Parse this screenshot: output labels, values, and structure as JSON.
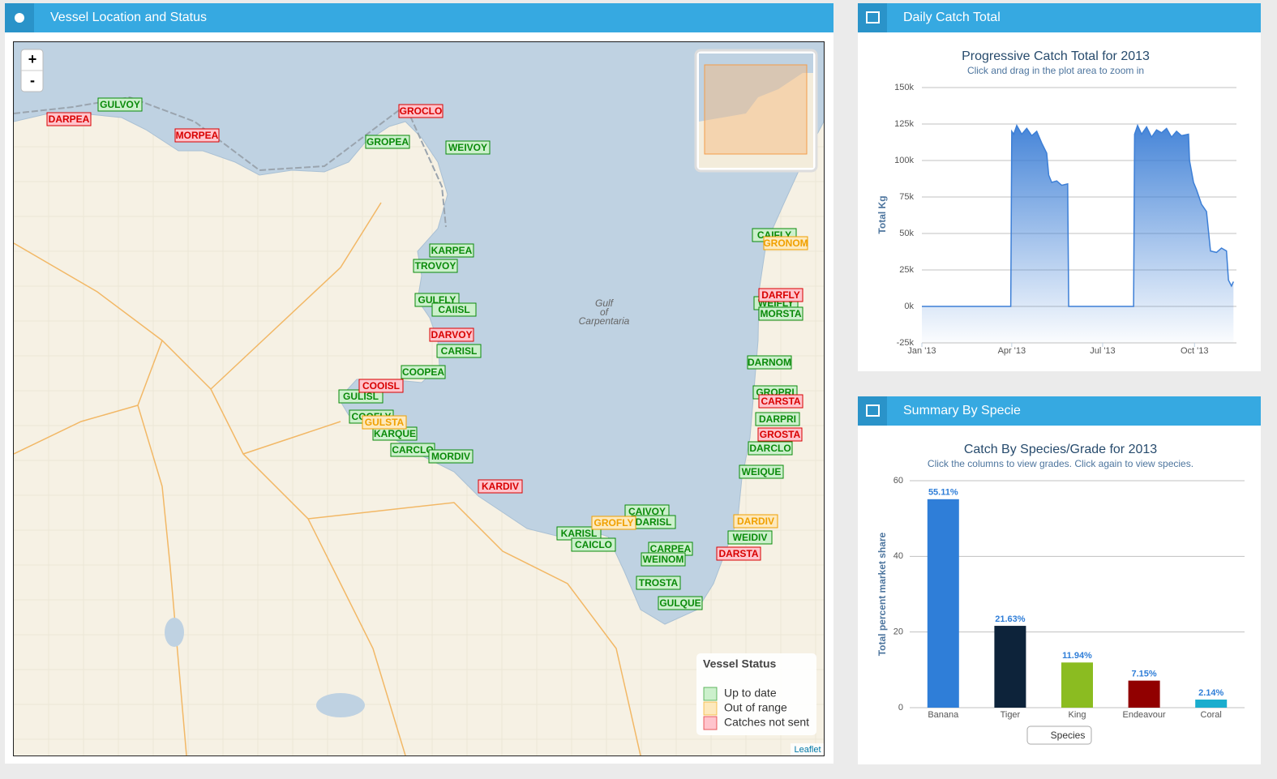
{
  "panels": {
    "map": {
      "title": "Vessel Location and Status",
      "zoom_in": "+",
      "zoom_out": "-",
      "place_label": [
        "Gulf",
        "of",
        "Carpentaria"
      ],
      "attribution": "Leaflet",
      "legend": {
        "title": "Vessel Status",
        "items": [
          {
            "label": "Up to date",
            "fill": "#ccf0cc",
            "color": "#0a8a0a",
            "vessels": [
              "GULVOY",
              "GROPEA",
              "WEIVOY",
              "CAIFLY",
              "KARPEA",
              "TROVOY",
              "GULFLY",
              "CAIISL",
              "WEIFLY",
              "MORSTA",
              "CARISL",
              "DARNOM",
              "COOPEA",
              "GROPRI",
              "GULISL",
              "COOFLY",
              "DARPRI",
              "KARQUE",
              "CARCLO",
              "DARCLO",
              "MORDIV",
              "WEIQUE",
              "CAIVOY",
              "DARISL",
              "KARISL",
              "WEIDIV",
              "CAICLO",
              "CARPEA",
              "WEINOM",
              "TROSTA",
              "GULQUE"
            ]
          },
          {
            "label": "Out of range",
            "fill": "#fde9bd",
            "color": "#f0a000",
            "vessels": [
              "GRONOM",
              "GULSTA",
              "GROFLY",
              "DARDIV"
            ]
          },
          {
            "label": "Catches not sent",
            "fill": "#ffc4cc",
            "color": "#d80000",
            "vessels": [
              "DARPEA",
              "MORPEA",
              "GROCLO",
              "DARFLY",
              "DARVOY",
              "COOISL",
              "CARSTA",
              "GROSTA",
              "KARDIV",
              "DARSTA"
            ]
          }
        ]
      }
    },
    "daily": {
      "title": "Daily Catch Total"
    },
    "summary": {
      "title": "Summary By Specie",
      "button": "Species"
    }
  },
  "chart_data": [
    {
      "type": "line",
      "title": "Progressive Catch Total for 2013",
      "subtitle": "Click and drag in the plot area to zoom in",
      "y_label": "Total Kg",
      "color": "#3d7fd6",
      "x": [
        0,
        89,
        90,
        92,
        95,
        100,
        105,
        110,
        115,
        120,
        125,
        127,
        130,
        135,
        140,
        146,
        147,
        212,
        213,
        216,
        220,
        225,
        230,
        235,
        240,
        245,
        250,
        255,
        260,
        267,
        268,
        272,
        275,
        280,
        285,
        289,
        295,
        300,
        305,
        307,
        310,
        312
      ],
      "series": [
        {
          "values": [
            0,
            0,
            120000,
            118000,
            124000,
            118000,
            122000,
            117000,
            120000,
            112000,
            105000,
            90000,
            85000,
            86000,
            83000,
            84000,
            0,
            0,
            118000,
            124000,
            118000,
            123000,
            116000,
            121000,
            119000,
            122000,
            116000,
            120000,
            117000,
            118000,
            100000,
            85000,
            80000,
            70000,
            65000,
            38000,
            37000,
            40000,
            38000,
            18000,
            14000,
            17000
          ]
        }
      ],
      "xlim": [
        0,
        315
      ],
      "xticks": [
        {
          "value": 0,
          "label": "Jan '13"
        },
        {
          "value": 90,
          "label": "Apr '13"
        },
        {
          "value": 181,
          "label": "Jul '13"
        },
        {
          "value": 273,
          "label": "Oct '13"
        }
      ],
      "ylim": [
        -25000,
        150000
      ],
      "yticks": [
        {
          "value": -25000,
          "label": "-25k"
        },
        {
          "value": 0,
          "label": "0k"
        },
        {
          "value": 25000,
          "label": "25k"
        },
        {
          "value": 50000,
          "label": "50k"
        },
        {
          "value": 75000,
          "label": "75k"
        },
        {
          "value": 100000,
          "label": "100k"
        },
        {
          "value": 125000,
          "label": "125k"
        },
        {
          "value": 150000,
          "label": "150k"
        }
      ],
      "grid": true
    },
    {
      "type": "bar",
      "title": "Catch By Species/Grade for 2013",
      "subtitle": "Click the columns to view grades. Click again to view species.",
      "y_label": "Total percent market share",
      "categories": [
        "Banana",
        "Tiger",
        "King",
        "Endeavour",
        "Coral"
      ],
      "values": [
        55.11,
        21.63,
        11.94,
        7.15,
        2.14
      ],
      "value_labels": [
        "55.11%",
        "21.63%",
        "11.94%",
        "7.15%",
        "2.14%"
      ],
      "colors": [
        "#2f7ed8",
        "#0d233a",
        "#8bbc21",
        "#910000",
        "#1aadce"
      ],
      "ylim": [
        0,
        60
      ],
      "yticks": [
        0,
        20,
        40,
        60
      ],
      "grid": true
    }
  ]
}
